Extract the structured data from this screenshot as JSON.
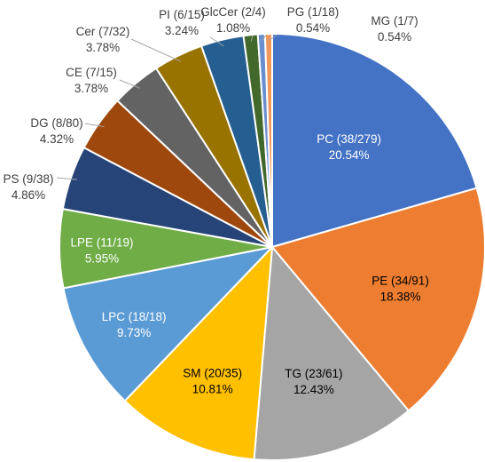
{
  "chart_data": {
    "type": "pie",
    "title": "",
    "start_angle_deg": 0,
    "direction": "clockwise",
    "slices": [
      {
        "name": "PC (38/279)",
        "value": 20.54,
        "percent_label": "20.54%",
        "color": "#4472C4"
      },
      {
        "name": "PE (34/91)",
        "value": 18.38,
        "percent_label": "18.38%",
        "color": "#ED7D31"
      },
      {
        "name": "TG (23/61)",
        "value": 12.43,
        "percent_label": "12.43%",
        "color": "#A5A5A5"
      },
      {
        "name": "SM (20/35)",
        "value": 10.81,
        "percent_label": "10.81%",
        "color": "#FFC000"
      },
      {
        "name": "LPC (18/18)",
        "value": 9.73,
        "percent_label": "9.73%",
        "color": "#5B9BD5"
      },
      {
        "name": "LPE (11/19)",
        "value": 5.95,
        "percent_label": "5.95%",
        "color": "#70AD47"
      },
      {
        "name": "PS (9/38)",
        "value": 4.86,
        "percent_label": "4.86%",
        "color": "#264478"
      },
      {
        "name": "DG (8/80)",
        "value": 4.32,
        "percent_label": "4.32%",
        "color": "#9E480E"
      },
      {
        "name": "CE (7/15)",
        "value": 3.78,
        "percent_label": "3.78%",
        "color": "#636363"
      },
      {
        "name": "Cer (7/32)",
        "value": 3.78,
        "percent_label": "3.78%",
        "color": "#997300"
      },
      {
        "name": "PI (6/15)",
        "value": 3.24,
        "percent_label": "3.24%",
        "color": "#255E91"
      },
      {
        "name": "GlcCer (2/4)",
        "value": 1.08,
        "percent_label": "1.08%",
        "color": "#43682B"
      },
      {
        "name": "PG (1/18)",
        "value": 0.54,
        "percent_label": "0.54%",
        "color": "#698ED0"
      },
      {
        "name": "MG (1/7)",
        "value": 0.54,
        "percent_label": "0.54%",
        "color": "#F1975A"
      }
    ]
  }
}
